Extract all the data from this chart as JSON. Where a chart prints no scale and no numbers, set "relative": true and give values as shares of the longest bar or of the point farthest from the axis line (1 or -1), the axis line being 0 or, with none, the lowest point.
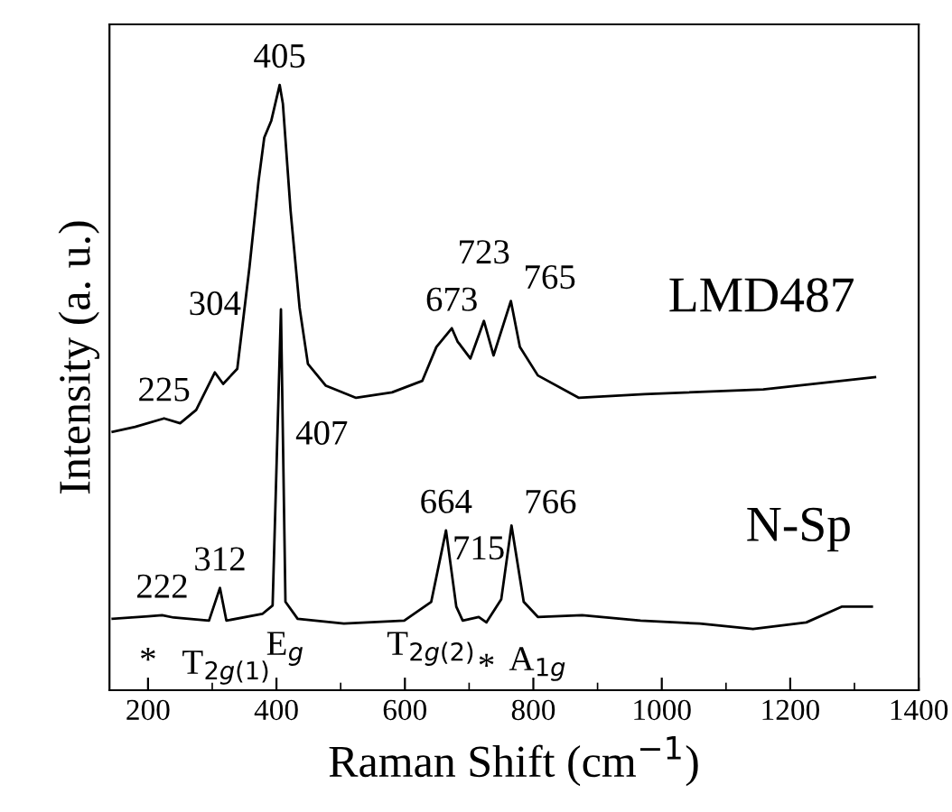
{
  "chart_data": {
    "type": "line",
    "xlabel": "Raman Shift (cm$^{−1}$)",
    "ylabel": "Intensity (a. u.)",
    "relative": true,
    "tick_labels": "x",
    "grid": false,
    "legend": false,
    "marker": "none",
    "line_style": "solid",
    "xlim": [
      140,
      1400
    ],
    "xticks": [
      200,
      400,
      600,
      800,
      1000,
      1200,
      1400
    ],
    "series": [
      {
        "name": "LMD487",
        "color": "#000000",
        "x": [
          145,
          180,
          225,
          250,
          275,
          304,
          317,
          339,
          358,
          372,
          381,
          392,
          405,
          410,
          422,
          436,
          449,
          477,
          524,
          580,
          627,
          649,
          673,
          682,
          702,
          723,
          738,
          765,
          779,
          807,
          871,
          973,
          1158,
          1332
        ],
        "values": [
          0.427,
          0.435,
          0.449,
          0.441,
          0.463,
          0.525,
          0.506,
          0.531,
          0.699,
          0.84,
          0.913,
          0.941,
          1.0,
          0.969,
          0.792,
          0.632,
          0.539,
          0.503,
          0.483,
          0.492,
          0.511,
          0.567,
          0.598,
          0.576,
          0.548,
          0.61,
          0.553,
          0.643,
          0.567,
          0.52,
          0.483,
          0.489,
          0.497,
          0.517
        ]
      },
      {
        "name": "N-Sp",
        "color": "#000000",
        "x": [
          145,
          200,
          222,
          240,
          295,
          312,
          322,
          378,
          394,
          407,
          414,
          433,
          505,
          599,
          641,
          664,
          680,
          690,
          715,
          727,
          750,
          766,
          785,
          807,
          876,
          967,
          1059,
          1142,
          1225,
          1280,
          1327
        ],
        "values": [
          0.118,
          0.122,
          0.124,
          0.12,
          0.115,
          0.169,
          0.115,
          0.126,
          0.14,
          0.629,
          0.146,
          0.118,
          0.11,
          0.115,
          0.146,
          0.264,
          0.138,
          0.115,
          0.121,
          0.112,
          0.15,
          0.272,
          0.146,
          0.121,
          0.124,
          0.115,
          0.11,
          0.101,
          0.112,
          0.138,
          0.138
        ]
      }
    ],
    "annotations": [
      {
        "text": "225",
        "x": 225,
        "y": 0.449
      },
      {
        "text": "304",
        "x": 304,
        "y": 0.525
      },
      {
        "text": "405",
        "x": 405,
        "y": 1.0
      },
      {
        "text": "673",
        "x": 673,
        "y": 0.598
      },
      {
        "text": "723",
        "x": 723,
        "y": 0.61
      },
      {
        "text": "765",
        "x": 765,
        "y": 0.643
      },
      {
        "text": "222",
        "x": 222,
        "y": 0.124
      },
      {
        "text": "312",
        "x": 312,
        "y": 0.169
      },
      {
        "text": "407",
        "x": 410,
        "y": 0.42
      },
      {
        "text": "664",
        "x": 664,
        "y": 0.264
      },
      {
        "text": "715",
        "x": 715,
        "y": 0.121
      },
      {
        "text": "766",
        "x": 766,
        "y": 0.272
      },
      {
        "text": "*",
        "x": 200,
        "y": 0.122
      },
      {
        "text": "T$_{2g(1)}$",
        "x": 322,
        "y": 0.115
      },
      {
        "text": "E$_{g}$",
        "x": 414,
        "y": 0.146
      },
      {
        "text": "T$_{2g(2)}$",
        "x": 641,
        "y": 0.146
      },
      {
        "text": "*",
        "x": 727,
        "y": 0.112
      },
      {
        "text": "A$_{1g}$",
        "x": 807,
        "y": 0.121
      }
    ]
  }
}
